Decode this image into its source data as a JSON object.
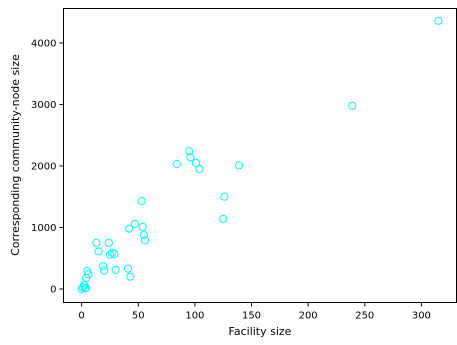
{
  "chart_data": {
    "type": "scatter",
    "title": "",
    "xlabel": "Facility size",
    "ylabel": "Corresponding community-node size",
    "xlim": [
      -16,
      331
    ],
    "ylim": [
      -220,
      4560
    ],
    "xticks": [
      0,
      50,
      100,
      150,
      200,
      250,
      300
    ],
    "yticks": [
      0,
      1000,
      2000,
      3000,
      4000
    ],
    "grid": false,
    "legend": "none",
    "marker": "open-circle",
    "marker_color": "#00ffff",
    "series": [
      {
        "x": [
          0,
          1,
          2,
          3,
          4,
          4,
          5,
          6,
          13,
          15,
          19,
          20,
          24,
          25,
          27,
          29,
          30,
          41,
          42,
          43,
          47,
          53,
          54,
          55,
          56,
          84,
          95,
          96,
          101,
          104,
          125,
          126,
          139,
          239,
          315
        ],
        "y": [
          0,
          30,
          60,
          10,
          180,
          20,
          290,
          240,
          750,
          610,
          370,
          300,
          750,
          560,
          590,
          570,
          310,
          330,
          980,
          200,
          1060,
          1430,
          1010,
          880,
          790,
          2030,
          2240,
          2140,
          2050,
          1950,
          1140,
          1500,
          2010,
          2980,
          4360
        ]
      }
    ]
  }
}
